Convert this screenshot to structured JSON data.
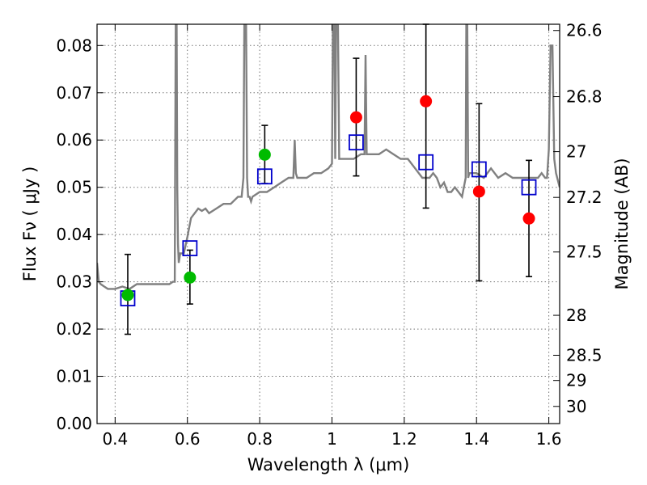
{
  "chart_data": {
    "type": "scatter",
    "title": "",
    "xlabel": "Wavelength  λ (μm)",
    "ylabel": "Flux  Fν  ( μJy )",
    "y2label": "Magnitude (AB)",
    "xlim": [
      0.35,
      1.63
    ],
    "ylim": [
      0.0,
      0.0845
    ],
    "grid": true,
    "x_ticks": [
      "0.4",
      "0.6",
      "0.8",
      "1",
      "1.2",
      "1.4",
      "1.6"
    ],
    "y_ticks": [
      "0.00",
      "0.01",
      "0.02",
      "0.03",
      "0.04",
      "0.05",
      "0.06",
      "0.07",
      "0.08"
    ],
    "y2_ticks": [
      {
        "label": "26.6",
        "mag": 26.6
      },
      {
        "label": "26.8",
        "mag": 26.8
      },
      {
        "label": "27",
        "mag": 27.0
      },
      {
        "label": "27.2",
        "mag": 27.2
      },
      {
        "label": "27.5",
        "mag": 27.5
      },
      {
        "label": "28",
        "mag": 28.0
      },
      {
        "label": "28.5",
        "mag": 28.5
      },
      {
        "label": "29",
        "mag": 29.0
      },
      {
        "label": "30",
        "mag": 30.0
      }
    ],
    "series": [
      {
        "kind": "line",
        "color": "#808080",
        "x": [
          0.35,
          0.355,
          0.36,
          0.37,
          0.38,
          0.4,
          0.42,
          0.44,
          0.46,
          0.48,
          0.5,
          0.52,
          0.54,
          0.55,
          0.56,
          0.565,
          0.566,
          0.568,
          0.57,
          0.572,
          0.574,
          0.576,
          0.578,
          0.58,
          0.59,
          0.6,
          0.61,
          0.62,
          0.63,
          0.64,
          0.65,
          0.66,
          0.68,
          0.7,
          0.72,
          0.74,
          0.75,
          0.755,
          0.758,
          0.762,
          0.765,
          0.768,
          0.772,
          0.776,
          0.78,
          0.8,
          0.82,
          0.84,
          0.86,
          0.88,
          0.893,
          0.897,
          0.9,
          0.904,
          0.91,
          0.93,
          0.95,
          0.97,
          0.99,
          1.0,
          1.003,
          1.006,
          1.009,
          1.012,
          1.016,
          1.02,
          1.04,
          1.06,
          1.08,
          1.09,
          1.093,
          1.096,
          1.099,
          1.11,
          1.13,
          1.15,
          1.17,
          1.19,
          1.21,
          1.23,
          1.25,
          1.27,
          1.28,
          1.29,
          1.3,
          1.31,
          1.32,
          1.33,
          1.34,
          1.35,
          1.36,
          1.37,
          1.372,
          1.374,
          1.377,
          1.38,
          1.4,
          1.42,
          1.44,
          1.46,
          1.48,
          1.5,
          1.52,
          1.54,
          1.56,
          1.57,
          1.58,
          1.59,
          1.595,
          1.6,
          1.605,
          1.61,
          1.615,
          1.62,
          1.63
        ],
        "y": [
          0.034,
          0.03,
          0.0295,
          0.029,
          0.0285,
          0.0285,
          0.029,
          0.0285,
          0.0295,
          0.0295,
          0.0295,
          0.0295,
          0.0295,
          0.0295,
          0.03,
          0.03,
          0.05,
          0.09,
          0.09,
          0.05,
          0.038,
          0.034,
          0.035,
          0.036,
          0.036,
          0.0395,
          0.0435,
          0.0445,
          0.0455,
          0.045,
          0.0455,
          0.0445,
          0.0455,
          0.0465,
          0.0465,
          0.048,
          0.048,
          0.052,
          0.09,
          0.09,
          0.052,
          0.048,
          0.048,
          0.047,
          0.048,
          0.049,
          0.049,
          0.05,
          0.051,
          0.052,
          0.052,
          0.06,
          0.053,
          0.052,
          0.052,
          0.052,
          0.053,
          0.053,
          0.054,
          0.055,
          0.09,
          0.09,
          0.056,
          0.09,
          0.09,
          0.056,
          0.056,
          0.056,
          0.057,
          0.057,
          0.078,
          0.057,
          0.057,
          0.057,
          0.057,
          0.058,
          0.057,
          0.056,
          0.056,
          0.054,
          0.052,
          0.052,
          0.053,
          0.052,
          0.05,
          0.051,
          0.049,
          0.049,
          0.05,
          0.049,
          0.048,
          0.052,
          0.09,
          0.09,
          0.052,
          0.053,
          0.053,
          0.052,
          0.054,
          0.052,
          0.053,
          0.052,
          0.052,
          0.052,
          0.052,
          0.052,
          0.053,
          0.052,
          0.052,
          0.058,
          0.08,
          0.08,
          0.056,
          0.053,
          0.05
        ]
      },
      {
        "kind": "squares",
        "color": "#0000cc",
        "x": [
          0.435,
          0.607,
          0.814,
          1.067,
          1.26,
          1.407,
          1.545
        ],
        "y": [
          0.0265,
          0.0371,
          0.0523,
          0.0595,
          0.0553,
          0.0538,
          0.05
        ]
      },
      {
        "kind": "points",
        "color": "#00bb00",
        "x": [
          0.435,
          0.607,
          0.814
        ],
        "y": [
          0.0272,
          0.0309,
          0.0569
        ]
      },
      {
        "kind": "points",
        "color": "#ff0000",
        "x": [
          1.067,
          1.26,
          1.407,
          1.545
        ],
        "y": [
          0.0648,
          0.0682,
          0.0491,
          0.0434
        ]
      },
      {
        "kind": "errorbars",
        "color": "#000000",
        "x": [
          0.435,
          0.607,
          0.814,
          1.067,
          1.26,
          1.407,
          1.545
        ],
        "y_low": [
          0.0189,
          0.0253,
          0.0508,
          0.0524,
          0.0456,
          0.0302,
          0.0311
        ],
        "y_high": [
          0.0358,
          0.0367,
          0.0631,
          0.0773,
          0.0845,
          0.0677,
          0.0557
        ]
      }
    ]
  }
}
